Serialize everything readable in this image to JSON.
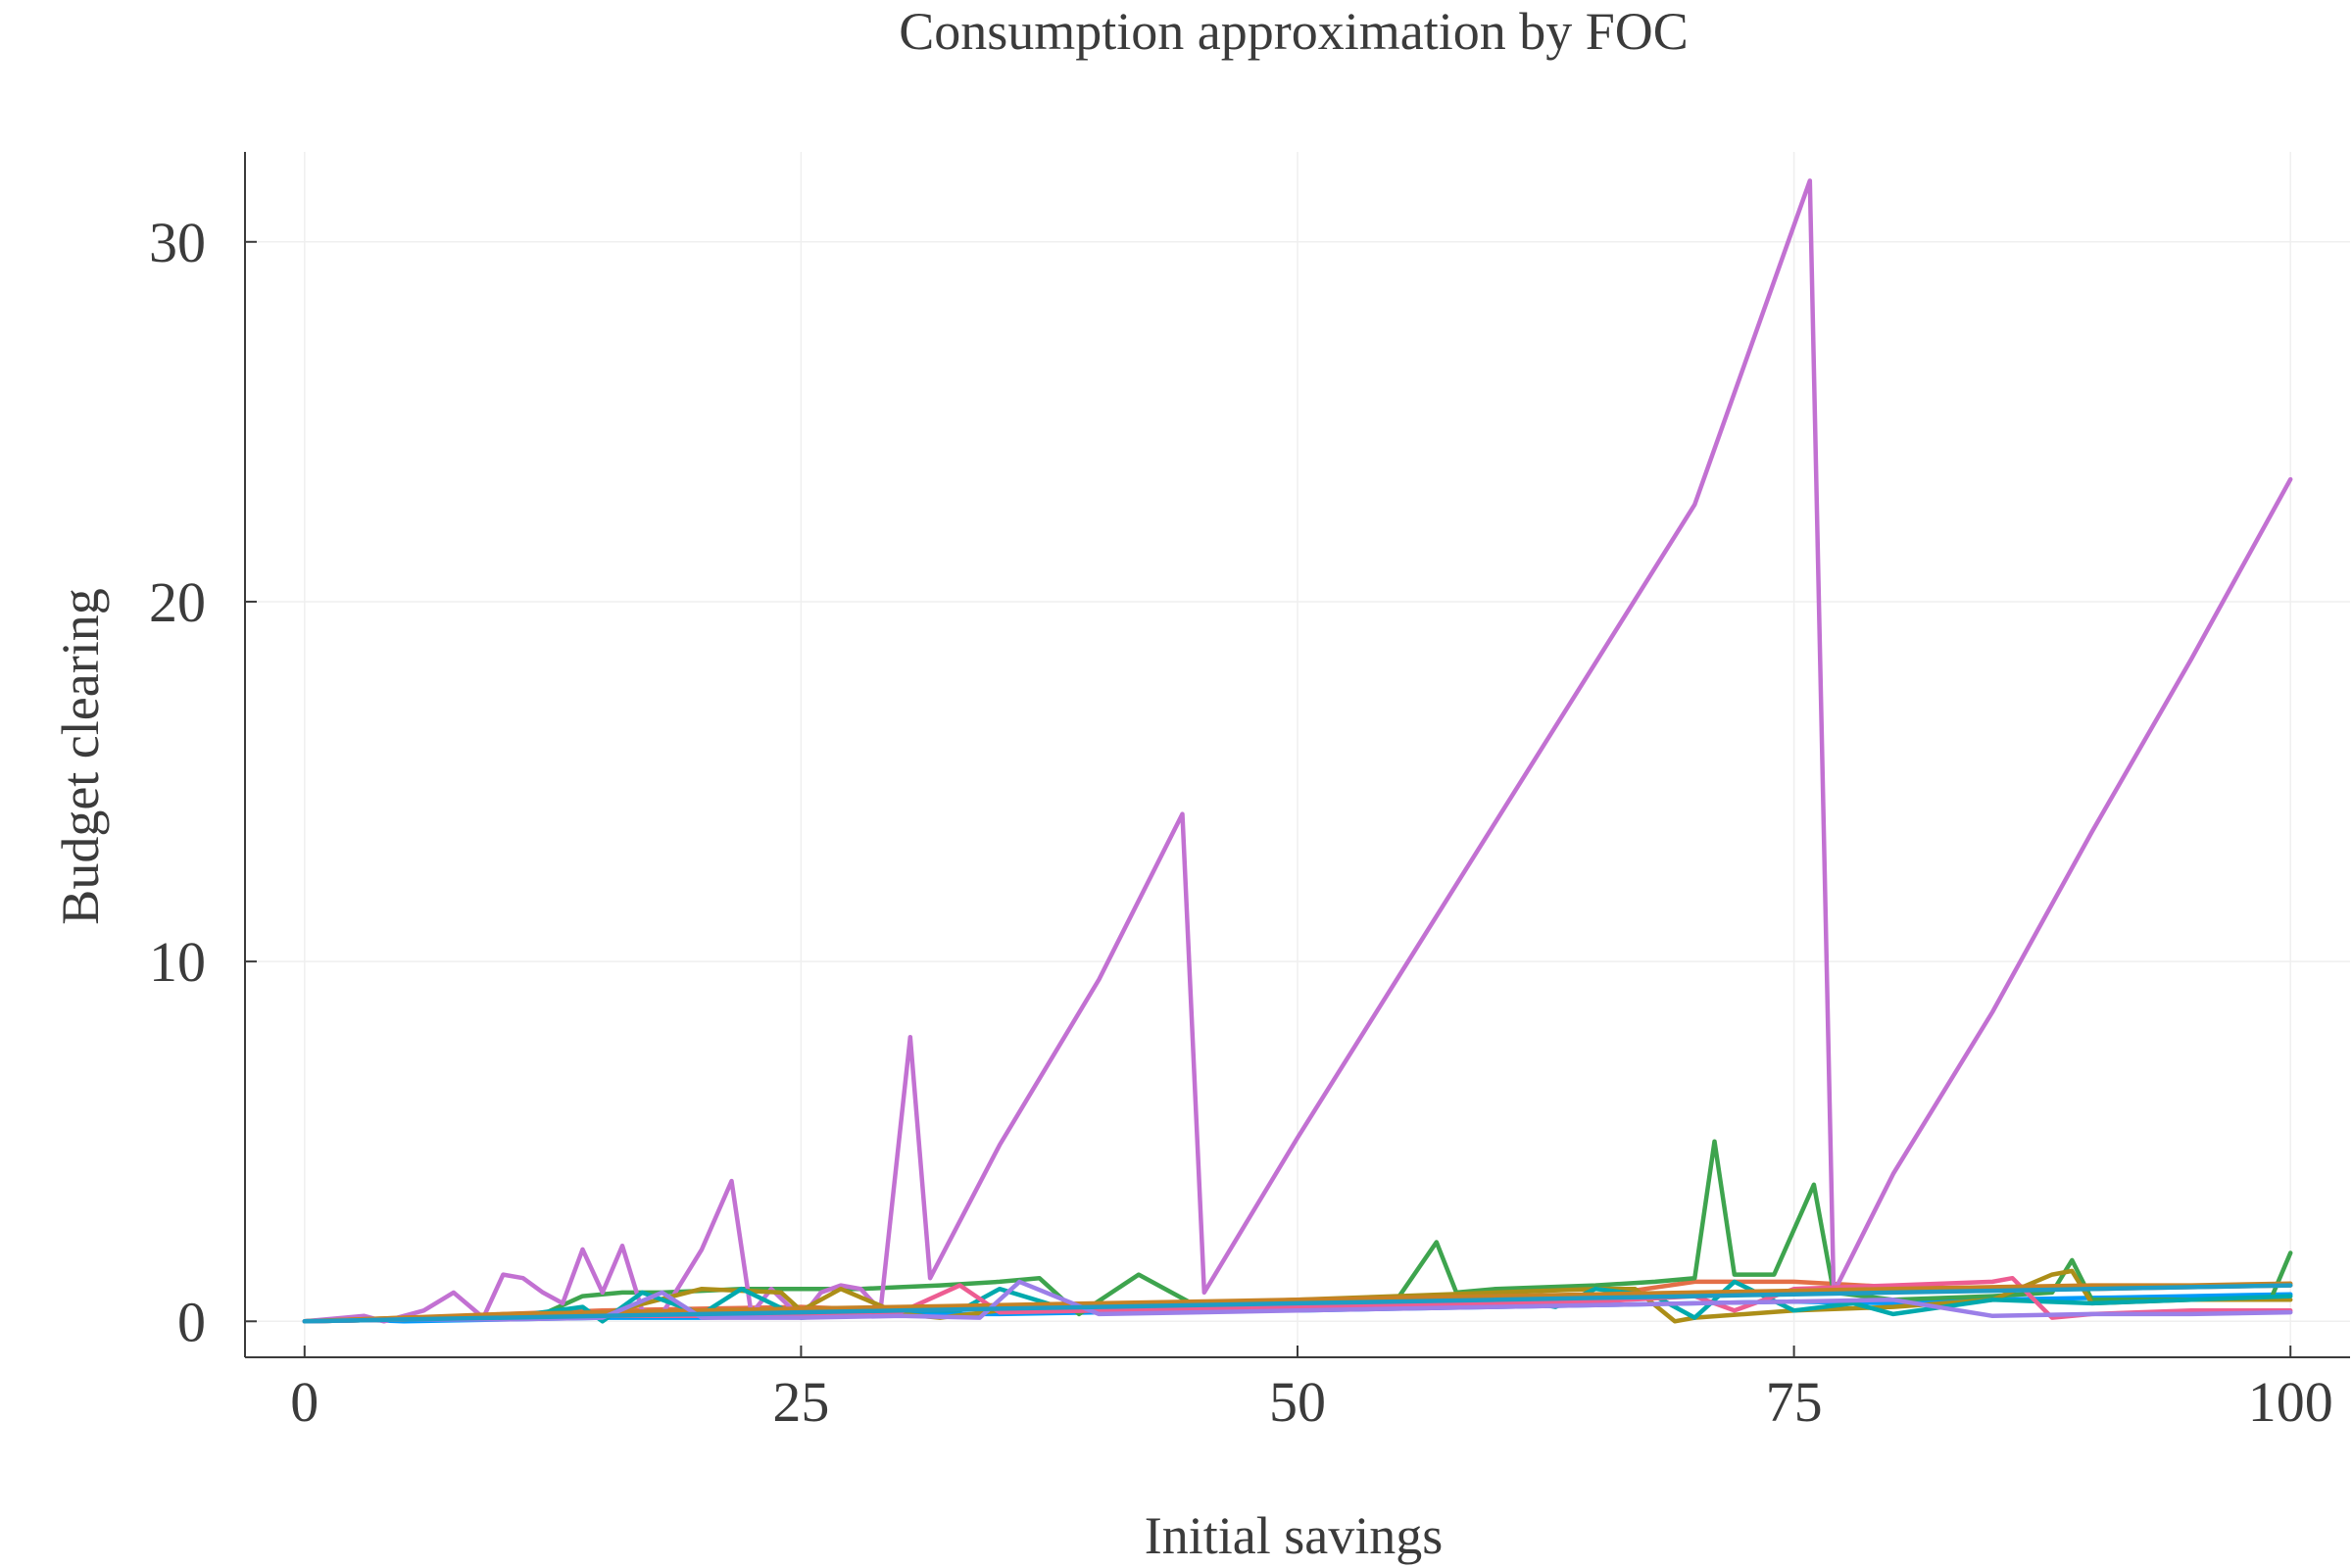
{
  "chart_data": {
    "type": "line",
    "title": "Consumption approximation by FOC",
    "xlabel": "Initial savings",
    "ylabel": "Budget clearing",
    "xlim": [
      -3,
      103
    ],
    "ylim": [
      -1,
      32.5
    ],
    "xticks": [
      0,
      25,
      50,
      75,
      100
    ],
    "yticks": [
      0,
      10,
      20,
      30
    ],
    "xtick_labels": [
      "0",
      "25",
      "50",
      "75",
      "100"
    ],
    "ytick_labels": [
      "0",
      "10",
      "20",
      "30"
    ],
    "grid": true,
    "legend": "none",
    "series": [
      {
        "color": "#009AFA",
        "x": [
          0,
          2.5,
          5,
          10,
          15,
          20,
          25,
          30,
          35,
          40,
          45,
          50,
          55,
          60,
          65,
          70,
          75,
          80,
          85,
          90,
          95,
          100
        ],
        "y": [
          0,
          0.05,
          0,
          0.05,
          0.1,
          0.1,
          0.15,
          0.2,
          0.2,
          0.25,
          0.3,
          0.3,
          0.35,
          0.4,
          0.45,
          0.5,
          0.55,
          0.5,
          0.6,
          0.65,
          0.7,
          0.75
        ]
      },
      {
        "color": "#E36F47",
        "x": [
          0,
          5,
          10,
          15,
          20,
          25,
          30,
          35,
          40,
          45,
          50,
          55,
          60,
          65,
          70,
          75,
          80,
          85,
          90,
          95,
          100
        ],
        "y": [
          0,
          0.05,
          0.2,
          0.3,
          0.35,
          0.4,
          0.3,
          0.45,
          0.45,
          0.5,
          0.55,
          0.6,
          0.65,
          0.7,
          1.1,
          1.1,
          0.95,
          0.9,
          0.9,
          0.95,
          1.0
        ]
      },
      {
        "color": "#3EA44E",
        "x": [
          0,
          5,
          8,
          10,
          12,
          14,
          16,
          18,
          20,
          22,
          25,
          28,
          30,
          32,
          35,
          37,
          39,
          42,
          45,
          50,
          55,
          57,
          58,
          60,
          65,
          68,
          70,
          71,
          72,
          74,
          76,
          77,
          80,
          85,
          88,
          89,
          90,
          95,
          99,
          100
        ],
        "y": [
          0,
          0.05,
          0.1,
          0.1,
          0.2,
          0.7,
          0.8,
          0.8,
          0.85,
          0.9,
          0.9,
          0.9,
          0.95,
          1.0,
          1.1,
          1.2,
          0.2,
          1.3,
          0.4,
          0.5,
          0.6,
          2.2,
          0.8,
          0.9,
          1.0,
          1.1,
          1.2,
          5.0,
          1.3,
          1.3,
          3.8,
          0.8,
          0.6,
          0.7,
          0.8,
          1.7,
          0.6,
          0.6,
          0.6,
          1.9
        ]
      },
      {
        "color": "#C271D2",
        "x": [
          0,
          2,
          3,
          4,
          6,
          7.5,
          9,
          10,
          11,
          12,
          13,
          14,
          15,
          16,
          17,
          18,
          20,
          21.5,
          22.5,
          23.5,
          25,
          26,
          27,
          28,
          29,
          30.5,
          31.5,
          35,
          40,
          44.2,
          45.3,
          50,
          55,
          60,
          65,
          70,
          75.8,
          77,
          80,
          85,
          90,
          95,
          100
        ],
        "y": [
          0,
          0.1,
          0.15,
          0,
          0.3,
          0.8,
          0.1,
          1.3,
          1.2,
          0.8,
          0.5,
          2.0,
          0.8,
          2.1,
          0.3,
          0.2,
          2.0,
          3.9,
          0.2,
          0.9,
          0.1,
          0.8,
          1.0,
          0.9,
          0.3,
          7.9,
          1.2,
          4.9,
          9.5,
          14.1,
          0.8,
          5.1,
          9.5,
          13.9,
          18.3,
          22.7,
          31.7,
          0.8,
          4.1,
          8.6,
          13.6,
          18.4,
          23.4
        ]
      },
      {
        "color": "#AC8E18",
        "x": [
          0,
          5,
          10,
          15,
          20,
          24,
          25,
          27,
          30,
          32,
          35,
          38,
          40,
          45,
          50,
          55,
          60,
          65,
          67,
          69,
          70,
          75,
          80,
          85,
          88,
          89,
          90,
          95,
          100
        ],
        "y": [
          0,
          0.1,
          0.15,
          0.2,
          0.9,
          0.8,
          0.3,
          0.9,
          0.2,
          0.1,
          0.3,
          0.4,
          0.4,
          0.5,
          0.6,
          0.7,
          0.8,
          0.9,
          0.9,
          0,
          0.1,
          0.3,
          0.4,
          0.6,
          1.3,
          1.4,
          0.5,
          0.6,
          0.6
        ]
      },
      {
        "color": "#00A9AD",
        "x": [
          0,
          5,
          10,
          14,
          15,
          17,
          20,
          22,
          25,
          28,
          30,
          33,
          35,
          38,
          40,
          45,
          50,
          55,
          60,
          63,
          65,
          68,
          70,
          72,
          75,
          78,
          80,
          85,
          90,
          95,
          100
        ],
        "y": [
          0,
          0.05,
          0.1,
          0.4,
          0,
          0.8,
          0.2,
          0.9,
          0.1,
          0.2,
          0.3,
          0.3,
          0.9,
          0.4,
          0.3,
          0.4,
          0.5,
          0.6,
          0.7,
          0.4,
          0.9,
          0.7,
          0.1,
          1.1,
          0.3,
          0.5,
          0.2,
          0.6,
          0.5,
          0.6,
          0.7
        ]
      },
      {
        "color": "#ED5D92",
        "x": [
          0,
          5,
          10,
          15,
          20,
          25,
          30,
          33,
          35,
          40,
          45,
          50,
          55,
          60,
          65,
          70,
          72,
          75,
          80,
          85,
          86,
          88,
          90,
          95,
          100
        ],
        "y": [
          0,
          0.05,
          0.1,
          0.15,
          0.15,
          0.2,
          0.25,
          1.0,
          0.25,
          0.3,
          0.35,
          0.4,
          0.45,
          0.5,
          0.55,
          0.7,
          0.3,
          0.9,
          1.0,
          1.1,
          1.2,
          0.1,
          0.2,
          0.3,
          0.3
        ]
      },
      {
        "color": "#C68225",
        "x": [
          0,
          5,
          10,
          15,
          20,
          25,
          30,
          35,
          40,
          45,
          50,
          55,
          60,
          65,
          70,
          75,
          80,
          85,
          90,
          95,
          100
        ],
        "y": [
          0,
          0.1,
          0.2,
          0.25,
          0.3,
          0.35,
          0.4,
          0.45,
          0.5,
          0.55,
          0.6,
          0.65,
          0.7,
          0.75,
          0.8,
          0.85,
          0.9,
          0.95,
          1.0,
          1.0,
          1.05
        ]
      },
      {
        "color": "#9B7FE8",
        "x": [
          0,
          5,
          10,
          15,
          18,
          20,
          25,
          30,
          34,
          36,
          40,
          45,
          50,
          55,
          60,
          65,
          70,
          75,
          80,
          85,
          90,
          95,
          100
        ],
        "y": [
          0,
          0.05,
          0.05,
          0.1,
          0.8,
          0.1,
          0.1,
          0.15,
          0.1,
          1.1,
          0.2,
          0.25,
          0.3,
          0.35,
          0.4,
          0.45,
          0.5,
          0.55,
          0.6,
          0.15,
          0.2,
          0.2,
          0.25
        ]
      },
      {
        "color": "#1F9CC4",
        "x": [
          0,
          5,
          10,
          15,
          20,
          25,
          30,
          35,
          40,
          45,
          50,
          55,
          60,
          65,
          70,
          75,
          80,
          85,
          90,
          95,
          100
        ],
        "y": [
          0,
          0.05,
          0.1,
          0.15,
          0.2,
          0.25,
          0.3,
          0.35,
          0.4,
          0.45,
          0.5,
          0.55,
          0.6,
          0.65,
          0.7,
          0.75,
          0.8,
          0.85,
          0.9,
          0.95,
          1.0
        ]
      }
    ]
  }
}
